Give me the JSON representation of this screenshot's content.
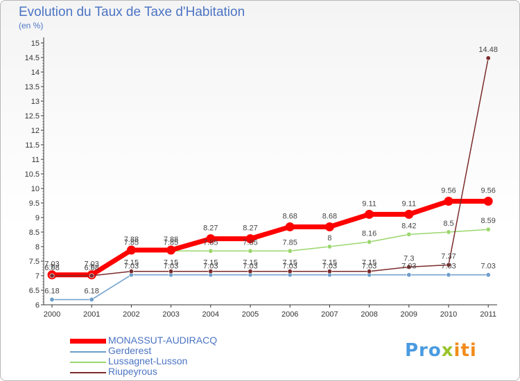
{
  "title": "Evolution du Taux de Taxe d'Habitation",
  "subtitle": "(en %)",
  "logo": "Proxiti",
  "chart_data": {
    "type": "line",
    "categories": [
      "2000",
      "2001",
      "2002",
      "2003",
      "2004",
      "2005",
      "2006",
      "2007",
      "2008",
      "2009",
      "2010",
      "2011"
    ],
    "ylim": [
      6,
      15
    ],
    "ytick_labels": [
      "6",
      "6.5",
      "7",
      "7.5",
      "8",
      "8.5",
      "9",
      "9.5",
      "10",
      "10.5",
      "11",
      "11.5",
      "12",
      "12.5",
      "13",
      "13.5",
      "14",
      "14.5",
      "15"
    ],
    "grid": false,
    "legend_position": "bottom-left",
    "series": [
      {
        "name": "MONASSUT-AUDIRACQ",
        "color": "#ff0000",
        "values": [
          7.03,
          7.03,
          7.88,
          7.88,
          8.27,
          8.27,
          8.68,
          8.68,
          9.11,
          9.11,
          9.56,
          9.56
        ],
        "labels": [
          "7.03",
          "7.03",
          "7.88",
          "7.88",
          "8.27",
          "8.27",
          "8.68",
          "8.68",
          "9.11",
          "9.11",
          "9.56",
          "9.56"
        ]
      },
      {
        "name": "Gerderest",
        "color": "#6d9ecb",
        "values": [
          6.18,
          6.18,
          7.03,
          7.03,
          7.03,
          7.03,
          7.03,
          7.03,
          7.03,
          7.03,
          7.03,
          7.03
        ],
        "labels": [
          "6.18",
          "6.18",
          "7.03",
          "7.03",
          "7.03",
          "7.03",
          "7.03",
          "7.03",
          "7.03",
          "7.03",
          "7.03",
          "7.03"
        ]
      },
      {
        "name": "Lussagnet-Lusson",
        "color": "#9ad66c",
        "values": [
          6.98,
          6.98,
          7.85,
          7.85,
          7.85,
          7.85,
          7.85,
          8,
          8.16,
          8.42,
          8.5,
          8.59
        ],
        "labels": [
          "6.98",
          "6.98",
          "7.85",
          "7.85",
          "7.85",
          "7.85",
          "7.85",
          "8",
          "8.16",
          "8.42",
          "8.5",
          "8.59"
        ]
      },
      {
        "name": "Riupeyrous",
        "color": "#7b2b2b",
        "values": [
          7,
          7,
          7.15,
          7.15,
          7.15,
          7.15,
          7.15,
          7.15,
          7.15,
          7.3,
          7.37,
          14.48
        ],
        "labels": [
          "7",
          "7",
          "7.15",
          "7.15",
          "7.15",
          "7.15",
          "7.15",
          "7.15",
          "7.15",
          "7.3",
          "7.37",
          "14.48"
        ]
      }
    ]
  }
}
